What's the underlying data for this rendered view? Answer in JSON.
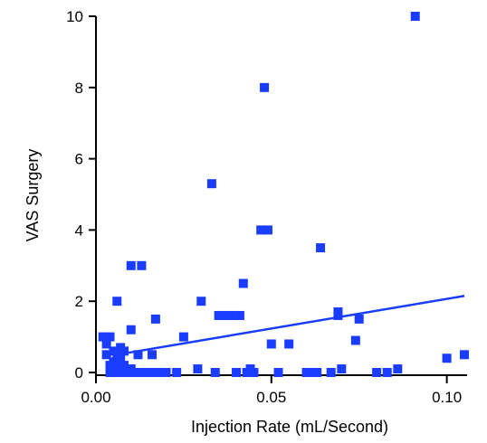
{
  "chart_data": {
    "type": "scatter",
    "title": "",
    "xlabel": "Injection Rate (mL/Second)",
    "ylabel": "VAS Surgery",
    "xlim": [
      0,
      0.105
    ],
    "ylim": [
      0,
      10
    ],
    "x_ticks": [
      "0.00",
      "0.05",
      "0.10"
    ],
    "y_ticks": [
      "0",
      "2",
      "4",
      "6",
      "8",
      "10"
    ],
    "grid": false,
    "legend": "none",
    "marker_color": "#1a3cff",
    "fit_color": "#1a3cff",
    "series": [
      {
        "name": "",
        "points": [
          [
            0.002,
            1.0
          ],
          [
            0.003,
            0.8
          ],
          [
            0.003,
            0.5
          ],
          [
            0.004,
            1.0
          ],
          [
            0.004,
            0.2
          ],
          [
            0.004,
            0.0
          ],
          [
            0.005,
            0.6
          ],
          [
            0.005,
            0.3
          ],
          [
            0.005,
            0.0
          ],
          [
            0.006,
            0.4
          ],
          [
            0.006,
            0.2
          ],
          [
            0.006,
            0.0
          ],
          [
            0.006,
            2.0
          ],
          [
            0.007,
            0.7
          ],
          [
            0.007,
            0.5
          ],
          [
            0.007,
            0.3
          ],
          [
            0.007,
            0.0
          ],
          [
            0.008,
            0.6
          ],
          [
            0.008,
            0.2
          ],
          [
            0.008,
            0.0
          ],
          [
            0.009,
            0.0
          ],
          [
            0.01,
            1.2
          ],
          [
            0.01,
            0.1
          ],
          [
            0.01,
            3.0
          ],
          [
            0.011,
            0.0
          ],
          [
            0.012,
            0.5
          ],
          [
            0.013,
            3.0
          ],
          [
            0.013,
            0.0
          ],
          [
            0.014,
            0.0
          ],
          [
            0.015,
            0.0
          ],
          [
            0.016,
            0.5
          ],
          [
            0.017,
            1.5
          ],
          [
            0.017,
            0.0
          ],
          [
            0.018,
            0.0
          ],
          [
            0.02,
            0.0
          ],
          [
            0.023,
            0.0
          ],
          [
            0.025,
            1.0
          ],
          [
            0.029,
            0.1
          ],
          [
            0.03,
            2.0
          ],
          [
            0.033,
            5.3
          ],
          [
            0.034,
            0.0
          ],
          [
            0.035,
            1.6
          ],
          [
            0.037,
            1.6
          ],
          [
            0.039,
            1.6
          ],
          [
            0.04,
            0.0
          ],
          [
            0.041,
            1.6
          ],
          [
            0.042,
            2.5
          ],
          [
            0.043,
            0.0
          ],
          [
            0.044,
            0.1
          ],
          [
            0.045,
            0.0
          ],
          [
            0.047,
            4.0
          ],
          [
            0.048,
            8.0
          ],
          [
            0.049,
            4.0
          ],
          [
            0.05,
            0.8
          ],
          [
            0.052,
            0.0
          ],
          [
            0.055,
            0.8
          ],
          [
            0.06,
            0.0
          ],
          [
            0.062,
            0.0
          ],
          [
            0.063,
            0.0
          ],
          [
            0.064,
            3.5
          ],
          [
            0.067,
            0.0
          ],
          [
            0.069,
            1.7
          ],
          [
            0.069,
            1.6
          ],
          [
            0.07,
            0.1
          ],
          [
            0.074,
            0.9
          ],
          [
            0.075,
            1.5
          ],
          [
            0.08,
            0.0
          ],
          [
            0.083,
            0.0
          ],
          [
            0.086,
            0.1
          ],
          [
            0.091,
            10.0
          ],
          [
            0.1,
            0.4
          ],
          [
            0.105,
            0.5
          ]
        ]
      }
    ],
    "fit_line": {
      "x": [
        0.009,
        0.105
      ],
      "y": [
        0.55,
        2.15
      ]
    }
  }
}
